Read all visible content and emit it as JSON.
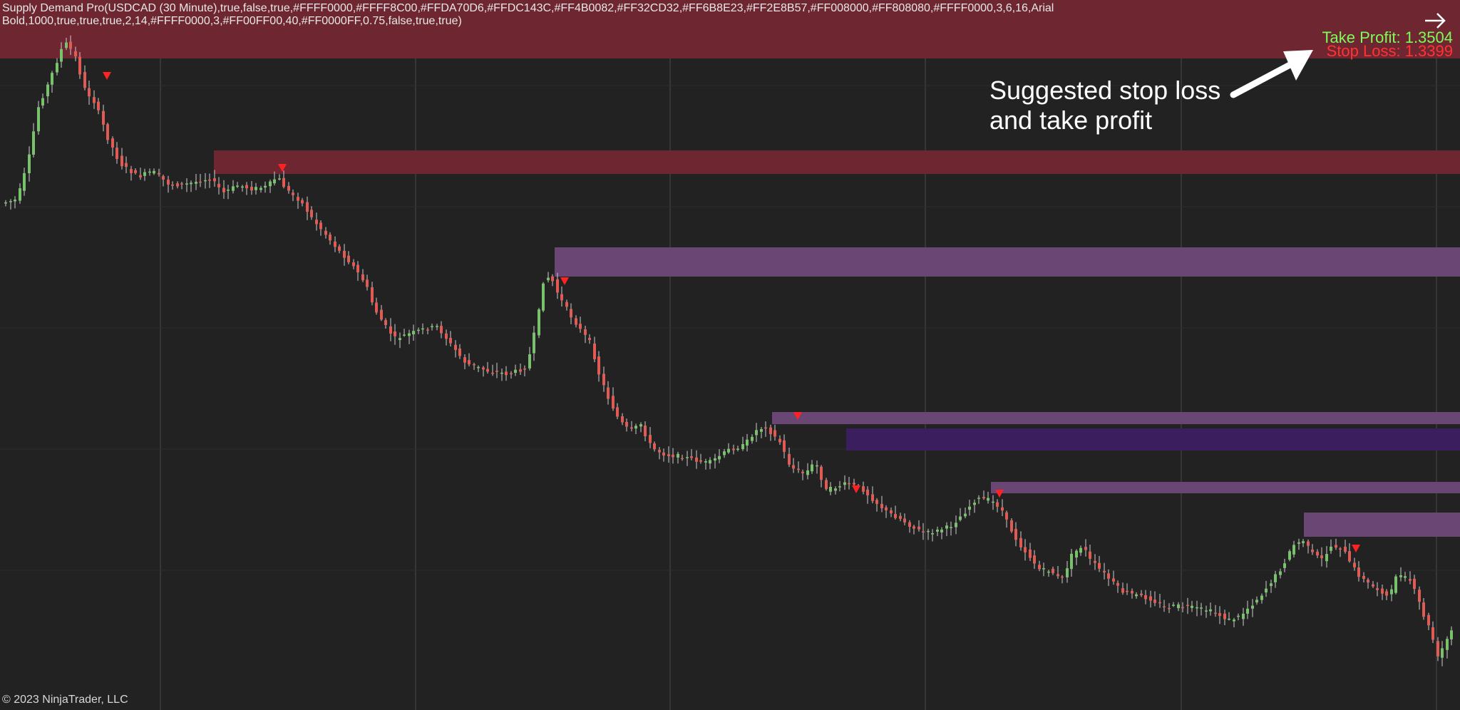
{
  "chart": {
    "indicator_label": "Supply Demand Pro(USDCAD (30 Minute),true,false,true,#FFFF0000,#FFFF8C00,#FFDA70D6,#FFDC143C,#FF4B0082,#FF32CD32,#FF6B8E23,#FF2E8B57,#FF008000,#FF808080,#FFFF0000,3,6,16,Arial Bold,1000,true,true,true,2,14,#FFFF0000,3,#FF00FF00,40,#FF0000FF,0.75,false,true,true)",
    "take_profit_label": "Take Profit: 1.3504",
    "stop_loss_label": "Stop Loss: 1.3399",
    "annotation": [
      "Suggested stop loss",
      "and take profit"
    ],
    "copyright": "© 2023 NinjaTrader, LLC",
    "nav_icon": "right-arrow-icon"
  },
  "colors": {
    "background": "#222222",
    "gridline": "#4a4a4a",
    "up_candle": "#77c26b",
    "down_candle": "#e15a54",
    "wick": "#cfcfcf",
    "supply_zone_red": "#6e2630",
    "supply_zone_purple": "#6a4675",
    "supply_zone_indigo": "#3a1e5e",
    "take_profit": "#7CFC5A",
    "stop_loss": "#FF3333",
    "signal_marker": "#FF2222",
    "annotation_arrow": "#FFFFFF"
  }
}
